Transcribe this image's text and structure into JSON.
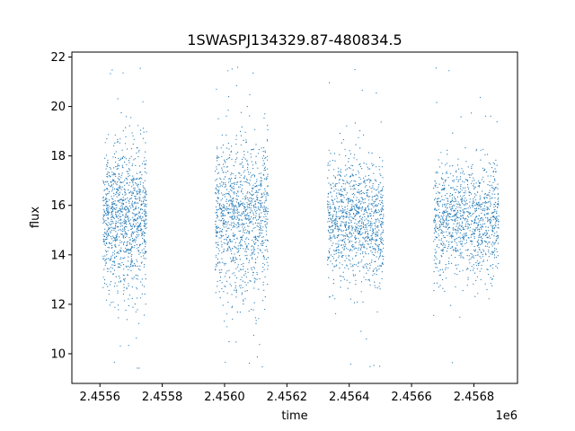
{
  "chart_data": {
    "type": "scatter",
    "title": "1SWASPJ134329.87-480834.5",
    "xlabel": "time",
    "ylabel": "flux",
    "x_offset_label": "1e6",
    "xlim": [
      2.45551,
      2.45694
    ],
    "ylim": [
      8.8,
      22.2
    ],
    "xticks": [
      2.4556,
      2.4558,
      2.456,
      2.4562,
      2.4564,
      2.4566,
      2.4568
    ],
    "xtick_labels": [
      "2.4556",
      "2.4558",
      "2.4560",
      "2.4562",
      "2.4564",
      "2.4566",
      "2.4568"
    ],
    "yticks": [
      10,
      12,
      14,
      16,
      18,
      20,
      22
    ],
    "ytick_labels": [
      "10",
      "12",
      "14",
      "16",
      "18",
      "20",
      "22"
    ],
    "grid": false,
    "point_color": "#1f77b4",
    "season_ranges": [
      {
        "x_start": 2.45561,
        "x_end": 2.45575,
        "y_center": 15.4,
        "y_spread": 1.5
      },
      {
        "x_start": 2.45597,
        "x_end": 2.45614,
        "y_center": 15.5,
        "y_spread": 1.6
      },
      {
        "x_start": 2.45633,
        "x_end": 2.45651,
        "y_center": 15.4,
        "y_spread": 1.2
      },
      {
        "x_start": 2.45667,
        "x_end": 2.45688,
        "y_center": 15.4,
        "y_spread": 1.1
      }
    ]
  }
}
